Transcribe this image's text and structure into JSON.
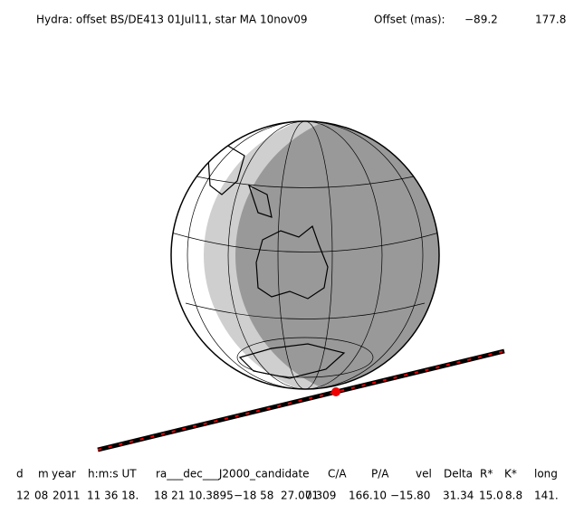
{
  "header": {
    "title": "Hydra: offset BS/DE413 01Jul11, star MA 10nov09",
    "offset_label": "Offset (mas):",
    "offset_values": [
      "−89.2",
      "177.8"
    ]
  },
  "table": {
    "columns": [
      "d",
      "m",
      "year",
      "h:m:s UT",
      "ra___dec___J2000_candidate",
      "C/A",
      "P/A",
      "vel",
      "Delta",
      "R*",
      "K*",
      "long"
    ],
    "row": [
      "12",
      "08",
      "2011",
      "11 36 18.",
      "18 21 10.3895",
      "−18 58  27.071",
      "0.309",
      "166.10",
      "−15.80",
      "31.34",
      "15.0",
      "8.8",
      "141."
    ]
  }
}
